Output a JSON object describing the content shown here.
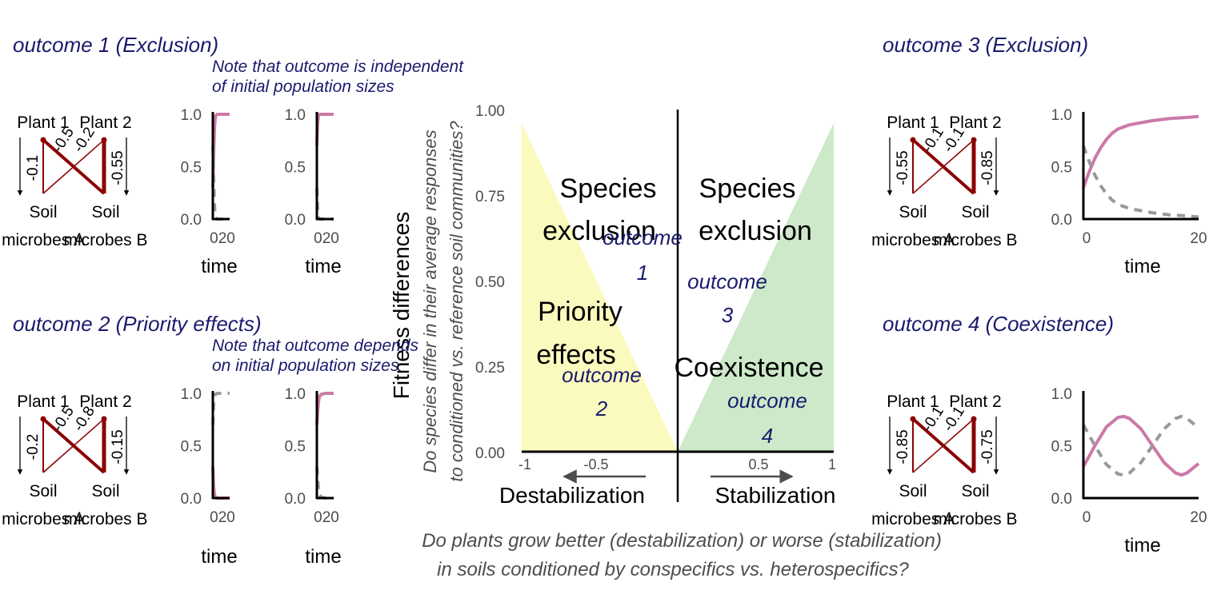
{
  "panels": {
    "p1": {
      "title": "outcome 1 (Exclusion)",
      "note_line1": "Note that outcome is independent",
      "note_line2": "of initial population sizes"
    },
    "p2": {
      "title": "outcome 2 (Priority effects)",
      "note_line1": "Note that outcome depends",
      "note_line2": "on initial population sizes"
    },
    "p3": {
      "title": "outcome 3 (Exclusion)"
    },
    "p4": {
      "title": "outcome 4 (Coexistence)"
    }
  },
  "network_labels": {
    "plant1": "Plant 1",
    "plant2": "Plant 2",
    "soil": "Soil",
    "microbes_a": "microbes A",
    "microbes_b": "microbes B"
  },
  "networks": {
    "n1": {
      "left": "-0.1",
      "right": "-0.55",
      "cross1": "-0.5",
      "cross2": "-0.2"
    },
    "n2": {
      "left": "-0.2",
      "right": "-0.15",
      "cross1": "-0.5",
      "cross2": "-0.8"
    },
    "n3": {
      "left": "-0.55",
      "right": "-0.85",
      "cross1": "-0.1",
      "cross2": "-0.1"
    },
    "n4": {
      "left": "-0.85",
      "right": "-0.75",
      "cross1": "-0.1",
      "cross2": "-0.1"
    }
  },
  "timeseries_axis": {
    "xlabel": "time",
    "yticks": [
      "0.0",
      "0.5",
      "1.0"
    ],
    "xticks_small": "020",
    "xticks_large": [
      "0",
      "20"
    ]
  },
  "central": {
    "ylabel": "Fitness differences",
    "ylabel_q1": "Do species differ in their average responses",
    "ylabel_q2": "to conditioned vs. reference soil communities?",
    "xlabel_q1": "Do plants grow better (destabilization) or worse (stabilization)",
    "xlabel_q2": "in soils conditioned by conspecifics vs. heterospecifics?",
    "yticks": [
      "0.00",
      "0.25",
      "0.50",
      "0.75",
      "1.00"
    ],
    "xticks": [
      "-1",
      "-0.5",
      "0.5",
      "1"
    ],
    "region_left_top_1": "Species",
    "region_left_top_2": "exclusion",
    "region_right_top_1": "Species",
    "region_right_top_2": "exclusion",
    "region_left_bottom_1": "Priority",
    "region_left_bottom_2": "effects",
    "region_right_bottom": "Coexistence",
    "outcome_word": "outcome",
    "o1": "1",
    "o2": "2",
    "o3": "3",
    "o4": "4",
    "destab": "Destabilization",
    "stab": "Stabilization"
  },
  "colors": {
    "pink": "#cc79a7",
    "grey": "#999999",
    "darkred": "#8b0000",
    "navy": "#1a1a6e",
    "yellow": "#fafabf",
    "green": "#cde9c9",
    "axis": "#4d4d4d"
  },
  "chart_data": [
    {
      "type": "line",
      "title": "outcome 1 (Exclusion)",
      "xlabel": "time",
      "ylim": [
        0,
        1
      ],
      "x": [
        0,
        1,
        2,
        3,
        5,
        10,
        20
      ],
      "series": [
        {
          "values": [
            0.3,
            0.62,
            0.88,
            0.98,
            1.0,
            1.0,
            1.0
          ]
        },
        {
          "values": [
            0.7,
            0.38,
            0.12,
            0.02,
            0.0,
            0.0,
            0.0
          ]
        }
      ]
    },
    {
      "type": "line",
      "title": "outcome 1 (Exclusion)",
      "xlabel": "time",
      "ylim": [
        0,
        1
      ],
      "x": [
        0,
        1,
        2,
        3,
        5,
        10,
        20
      ],
      "series": [
        {
          "values": [
            0.7,
            0.92,
            0.99,
            1.0,
            1.0,
            1.0,
            1.0
          ]
        },
        {
          "values": [
            0.3,
            0.08,
            0.01,
            0.0,
            0.0,
            0.0,
            0.0
          ]
        }
      ]
    },
    {
      "type": "line",
      "title": "outcome 2 (Priority effects)",
      "xlabel": "time",
      "ylim": [
        0,
        1
      ],
      "x": [
        0,
        1,
        2,
        3,
        5,
        10,
        20
      ],
      "series": [
        {
          "values": [
            0.3,
            0.1,
            0.03,
            0.01,
            0.0,
            0.0,
            0.0
          ]
        },
        {
          "values": [
            0.7,
            0.9,
            0.97,
            0.99,
            1.0,
            1.0,
            1.0
          ]
        }
      ]
    },
    {
      "type": "line",
      "title": "outcome 2 (Priority effects)",
      "xlabel": "time",
      "ylim": [
        0,
        1
      ],
      "x": [
        0,
        1,
        2,
        3,
        5,
        10,
        20
      ],
      "series": [
        {
          "values": [
            0.7,
            0.83,
            0.92,
            0.97,
            0.99,
            1.0,
            1.0
          ]
        },
        {
          "values": [
            0.3,
            0.17,
            0.08,
            0.03,
            0.01,
            0.0,
            0.0
          ]
        }
      ]
    },
    {
      "type": "line",
      "title": "outcome 3 (Exclusion)",
      "xlabel": "time",
      "ylim": [
        0,
        1
      ],
      "x": [
        0,
        1,
        2,
        3,
        4,
        5,
        6,
        8,
        10,
        12,
        15,
        18,
        20
      ],
      "series": [
        {
          "values": [
            0.3,
            0.45,
            0.58,
            0.68,
            0.76,
            0.82,
            0.86,
            0.9,
            0.92,
            0.94,
            0.96,
            0.97,
            0.98
          ]
        },
        {
          "values": [
            0.7,
            0.55,
            0.42,
            0.32,
            0.24,
            0.18,
            0.14,
            0.1,
            0.08,
            0.06,
            0.04,
            0.03,
            0.02
          ]
        }
      ]
    },
    {
      "type": "line",
      "title": "outcome 4 (Coexistence)",
      "xlabel": "time",
      "ylim": [
        0,
        1
      ],
      "x": [
        0,
        2,
        4,
        6,
        7,
        8,
        10,
        12,
        14,
        16,
        17,
        18,
        20
      ],
      "series": [
        {
          "values": [
            0.3,
            0.5,
            0.68,
            0.77,
            0.78,
            0.76,
            0.66,
            0.5,
            0.34,
            0.24,
            0.22,
            0.24,
            0.33
          ]
        },
        {
          "values": [
            0.7,
            0.5,
            0.32,
            0.23,
            0.22,
            0.24,
            0.34,
            0.5,
            0.66,
            0.76,
            0.78,
            0.76,
            0.67
          ]
        }
      ]
    },
    {
      "type": "area",
      "xlim": [
        -1,
        1
      ],
      "ylim": [
        0,
        1
      ],
      "xlabel": "Do plants grow better (destabilization) or worse (stabilization) in soils conditioned by conspecifics vs. heterospecifics?",
      "ylabel": "Fitness differences",
      "series": [
        {
          "x": [
            -1,
            0
          ],
          "values": [
            0.96,
            0
          ]
        },
        {
          "x": [
            0,
            1
          ],
          "values": [
            0,
            0.96
          ]
        }
      ]
    }
  ]
}
